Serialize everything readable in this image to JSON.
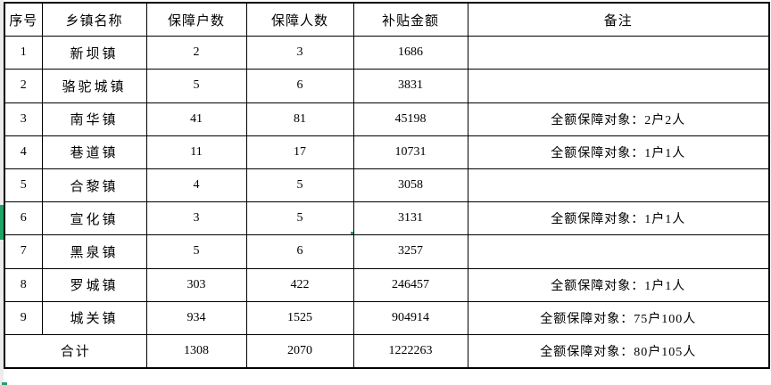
{
  "colors": {
    "selection_green": "#21a366",
    "grid_border": "#000000",
    "background": "#ffffff"
  },
  "table": {
    "headers": [
      "序号",
      "乡镇名称",
      "保障户数",
      "保障人数",
      "补贴金额",
      "备注"
    ],
    "rows": [
      [
        "1",
        "新坝镇",
        "2",
        "3",
        "1686",
        ""
      ],
      [
        "2",
        "骆驼城镇",
        "5",
        "6",
        "3831",
        ""
      ],
      [
        "3",
        "南华镇",
        "41",
        "81",
        "45198",
        "全额保障对象：2户2人"
      ],
      [
        "4",
        "巷道镇",
        "11",
        "17",
        "10731",
        "全额保障对象：1户1人"
      ],
      [
        "5",
        "合黎镇",
        "4",
        "5",
        "3058",
        ""
      ],
      [
        "6",
        "宣化镇",
        "3",
        "5",
        "3131",
        "全额保障对象：1户1人"
      ],
      [
        "7",
        "黑泉镇",
        "5",
        "6",
        "3257",
        ""
      ],
      [
        "8",
        "罗城镇",
        "303",
        "422",
        "246457",
        "全额保障对象：1户1人"
      ],
      [
        "9",
        "城关镇",
        "934",
        "1525",
        "904914",
        "全额保障对象：75户100人"
      ]
    ],
    "total_row": {
      "label": "合计",
      "values": [
        "1308",
        "2070",
        "1222263",
        "全额保障对象：80户105人"
      ]
    }
  },
  "selection": {
    "row_index": 5,
    "col_index": 3,
    "selected_value": "5"
  }
}
